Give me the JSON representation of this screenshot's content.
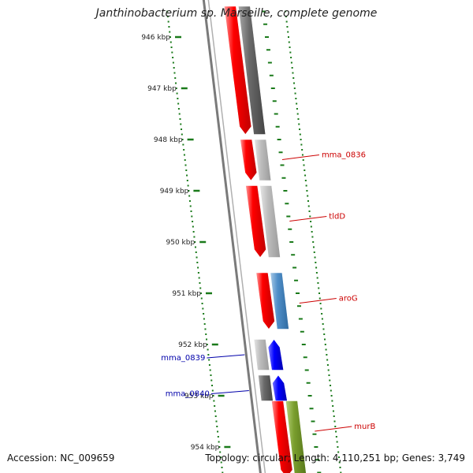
{
  "title": "Janthinobacterium sp. Marseille, complete genome",
  "footer": {
    "accession": "Accession: NC_009659",
    "summary": "Topology: circular; Length: 4,110,251 bp; Genes: 3,749"
  },
  "colors": {
    "ruler": "#1a7a1a",
    "backbone": "#7a7a7a",
    "label_forward": "#cc0000",
    "label_reverse": "#0000aa",
    "tick_text": "#222222"
  },
  "ruler": {
    "major_ticks_kbp": [
      946,
      947,
      948,
      949,
      950,
      951,
      952,
      953,
      954
    ],
    "tick_labels": [
      "946 kbp",
      "947 kbp",
      "948 kbp",
      "949 kbp",
      "950 kbp",
      "951 kbp",
      "952 kbp",
      "953 kbp",
      "954 kbp"
    ]
  },
  "tracks": [
    {
      "name": "forward-cds",
      "features": [
        {
          "start_kbp": 945.4,
          "end_kbp": 947.9,
          "strand": "+",
          "fill": "red"
        },
        {
          "start_kbp": 948.0,
          "end_kbp": 948.8,
          "strand": "+",
          "fill": "red"
        },
        {
          "start_kbp": 948.9,
          "end_kbp": 950.3,
          "strand": "+",
          "fill": "red"
        },
        {
          "start_kbp": 950.6,
          "end_kbp": 951.7,
          "strand": "+",
          "fill": "red"
        },
        {
          "start_kbp": 953.1,
          "end_kbp": 954.6,
          "strand": "+",
          "fill": "red"
        }
      ]
    },
    {
      "name": "forward-category",
      "features": [
        {
          "start_kbp": 945.4,
          "end_kbp": 947.9,
          "fill": "dgray"
        },
        {
          "start_kbp": 948.0,
          "end_kbp": 948.8,
          "fill": "lgray"
        },
        {
          "start_kbp": 948.9,
          "end_kbp": 950.3,
          "fill": "lgray"
        },
        {
          "start_kbp": 950.6,
          "end_kbp": 951.7,
          "fill": "blue"
        },
        {
          "start_kbp": 953.1,
          "end_kbp": 954.6,
          "fill": "green"
        }
      ]
    },
    {
      "name": "reverse-cds",
      "features": [
        {
          "start_kbp": 951.9,
          "end_kbp": 952.5,
          "strand": "-",
          "fill": "dblue"
        },
        {
          "start_kbp": 952.6,
          "end_kbp": 953.1,
          "strand": "-",
          "fill": "dblue"
        }
      ]
    },
    {
      "name": "reverse-category",
      "features": [
        {
          "start_kbp": 951.9,
          "end_kbp": 952.5,
          "fill": "lgray"
        },
        {
          "start_kbp": 952.6,
          "end_kbp": 953.1,
          "fill": "dgray"
        }
      ]
    }
  ],
  "gene_labels": [
    {
      "text": "mma_0836",
      "at_kbp": 948.3,
      "strand": "+"
    },
    {
      "text": "tldD",
      "at_kbp": 949.5,
      "strand": "+"
    },
    {
      "text": "aroG",
      "at_kbp": 951.1,
      "strand": "+"
    },
    {
      "text": "murB",
      "at_kbp": 953.6,
      "strand": "+"
    },
    {
      "text": "mma_0839",
      "at_kbp": 952.2,
      "strand": "-"
    },
    {
      "text": "mma_0840",
      "at_kbp": 952.9,
      "strand": "-"
    }
  ]
}
